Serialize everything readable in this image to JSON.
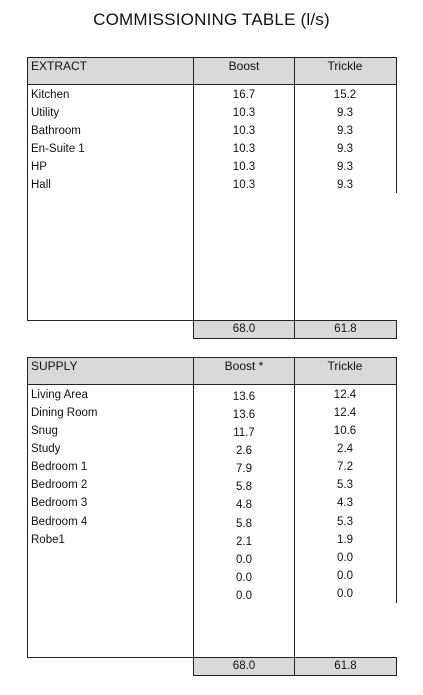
{
  "title": "COMMISSIONING TABLE (l/s)",
  "extract": {
    "header": [
      "EXTRACT",
      "Boost",
      "Trickle"
    ],
    "rows": [
      {
        "room": "Kitchen",
        "boost": "16.7",
        "trickle": "15.2"
      },
      {
        "room": "Utility",
        "boost": "10.3",
        "trickle": "9.3"
      },
      {
        "room": "Bathroom",
        "boost": "10.3",
        "trickle": "9.3"
      },
      {
        "room": "En-Suite 1",
        "boost": "10.3",
        "trickle": "9.3"
      },
      {
        "room": "HP",
        "boost": "10.3",
        "trickle": "9.3"
      },
      {
        "room": "Hall",
        "boost": "10.3",
        "trickle": "9.3"
      }
    ],
    "total_boost": "68.0",
    "total_trickle": "61.8"
  },
  "supply": {
    "header": [
      "SUPPLY",
      "Boost *",
      "Trickle"
    ],
    "rows": [
      {
        "room": "Living Area",
        "boost": "13.6",
        "trickle": "12.4"
      },
      {
        "room": "Dining Room",
        "boost": "13.6",
        "trickle": "12.4"
      },
      {
        "room": "Snug",
        "boost": "11.7",
        "trickle": "10.6"
      },
      {
        "room": "Study",
        "boost": "2.6",
        "trickle": "2.4"
      },
      {
        "room": "Bedroom 1",
        "boost": "7.9",
        "trickle": "7.2"
      },
      {
        "room": "Bedroom 2",
        "boost": "5.8",
        "trickle": "5.3"
      },
      {
        "room": "Bedroom 3",
        "boost": "4.8",
        "trickle": "4.3"
      },
      {
        "room": "Bedroom 4",
        "boost": "5.8",
        "trickle": "5.3"
      },
      {
        "room": "Robe1",
        "boost": "2.1",
        "trickle": "1.9"
      },
      {
        "room": "",
        "boost": "0.0",
        "trickle": "0.0"
      },
      {
        "room": "",
        "boost": "0.0",
        "trickle": "0.0"
      },
      {
        "room": "",
        "boost": "0.0",
        "trickle": "0.0"
      }
    ],
    "total_boost": "68.0",
    "total_trickle": "61.8"
  }
}
